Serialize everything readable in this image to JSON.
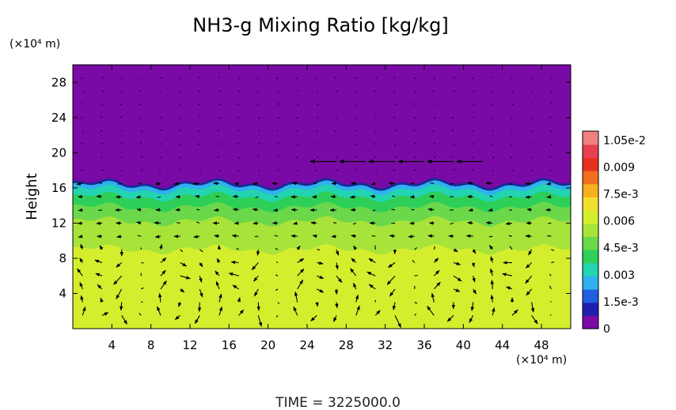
{
  "chart_data": {
    "type": "heatmap",
    "title": "NH3-g Mixing Ratio [kg/kg]",
    "xlabel": "",
    "ylabel": "Height",
    "x_unit": "(×10⁴ m)",
    "y_unit": "(×10⁴ m)",
    "xlim": [
      0,
      51
    ],
    "ylim": [
      0,
      30
    ],
    "x_ticks": [
      "4",
      "8",
      "12",
      "16",
      "20",
      "24",
      "28",
      "32",
      "36",
      "40",
      "44",
      "48"
    ],
    "y_ticks": [
      "4",
      "8",
      "12",
      "16",
      "20",
      "24",
      "28"
    ],
    "footer": "TIME = 3225000.0",
    "colorbar": {
      "min": 0,
      "max": 0.011,
      "labels": [
        "1.05e-2",
        "0.009",
        "7.5e-3",
        "0.006",
        "4.5e-3",
        "0.003",
        "1.5e-3",
        "0"
      ],
      "label_values": [
        0.0105,
        0.009,
        0.0075,
        0.006,
        0.0045,
        0.003,
        0.0015,
        0
      ]
    },
    "field_layers": [
      {
        "from": 0,
        "to": 9,
        "value": 0.008,
        "color": "#d4ee2e"
      },
      {
        "from": 9,
        "to": 12.2,
        "value": 0.0072,
        "color": "#a8e33a"
      },
      {
        "from": 12.2,
        "to": 13.8,
        "value": 0.0066,
        "color": "#6ad84a"
      },
      {
        "from": 13.8,
        "to": 15.0,
        "value": 0.006,
        "color": "#2ecf58"
      },
      {
        "from": 15.0,
        "to": 15.8,
        "value": 0.005,
        "color": "#22d4b0"
      },
      {
        "from": 15.8,
        "to": 16.4,
        "value": 0.004,
        "color": "#30b0f0"
      },
      {
        "from": 16.4,
        "to": 30,
        "value": 0.0,
        "color": "#7a0aa6"
      }
    ],
    "wind_jet": {
      "from_x": 24,
      "to_x": 42,
      "y": 19,
      "direction": "west"
    }
  }
}
